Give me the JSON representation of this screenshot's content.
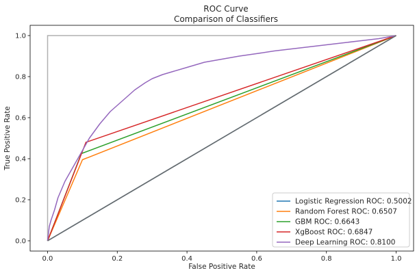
{
  "chart_data": {
    "type": "line",
    "title": "ROC Curve",
    "subtitle": "Comparison of Classifiers",
    "xlabel": "False Positive Rate",
    "ylabel": "True Positive Rate",
    "xlim": [
      -0.05,
      1.05
    ],
    "ylim": [
      -0.05,
      1.05
    ],
    "xticks": [
      0.0,
      0.2,
      0.4,
      0.6,
      0.8,
      1.0
    ],
    "xtick_labels": [
      "0.0",
      "0.2",
      "0.4",
      "0.6",
      "0.8",
      "1.0"
    ],
    "yticks": [
      0.0,
      0.2,
      0.4,
      0.6,
      0.8,
      1.0
    ],
    "ytick_labels": [
      "0.0",
      "0.2",
      "0.4",
      "0.6",
      "0.8",
      "1.0"
    ],
    "grid": false,
    "legend_position": "bottom-right",
    "reference_lines": [
      {
        "kind": "perfect",
        "color": "#b0b0b0",
        "x": [
          0,
          0,
          1
        ],
        "y": [
          0,
          1,
          1
        ]
      },
      {
        "kind": "diagonal",
        "color": "#6b6b6b",
        "x": [
          0,
          1
        ],
        "y": [
          0,
          1
        ]
      }
    ],
    "series": [
      {
        "name": "Logistic Regression ROC: 0.5002",
        "color": "#1f77b4",
        "x": [
          0,
          1
        ],
        "y": [
          0,
          1
        ]
      },
      {
        "name": "Random Forest ROC: 0.6507",
        "color": "#ff7f0e",
        "x": [
          0,
          0.1,
          1
        ],
        "y": [
          0,
          0.395,
          1
        ]
      },
      {
        "name": "GBM ROC: 0.6643",
        "color": "#2ca02c",
        "x": [
          0,
          0.097,
          1
        ],
        "y": [
          0,
          0.425,
          1
        ]
      },
      {
        "name": "XgBoost ROC: 0.6847",
        "color": "#d62728",
        "x": [
          0,
          0.11,
          1
        ],
        "y": [
          0,
          0.48,
          1
        ]
      },
      {
        "name": "Deep Learning ROC: 0.8100",
        "color": "#9467bd",
        "x": [
          0,
          0.005,
          0.01,
          0.02,
          0.03,
          0.04,
          0.05,
          0.06,
          0.08,
          0.1,
          0.12,
          0.15,
          0.18,
          0.2,
          0.22,
          0.25,
          0.28,
          0.3,
          0.33,
          0.35,
          0.4,
          0.45,
          0.5,
          0.55,
          0.6,
          0.65,
          0.7,
          0.75,
          0.8,
          0.85,
          0.9,
          0.95,
          1.0
        ],
        "y": [
          0,
          0.07,
          0.1,
          0.15,
          0.21,
          0.25,
          0.29,
          0.32,
          0.38,
          0.44,
          0.5,
          0.57,
          0.63,
          0.66,
          0.69,
          0.735,
          0.77,
          0.79,
          0.81,
          0.82,
          0.845,
          0.87,
          0.885,
          0.9,
          0.912,
          0.925,
          0.935,
          0.945,
          0.955,
          0.965,
          0.975,
          0.985,
          1.0
        ]
      }
    ]
  }
}
